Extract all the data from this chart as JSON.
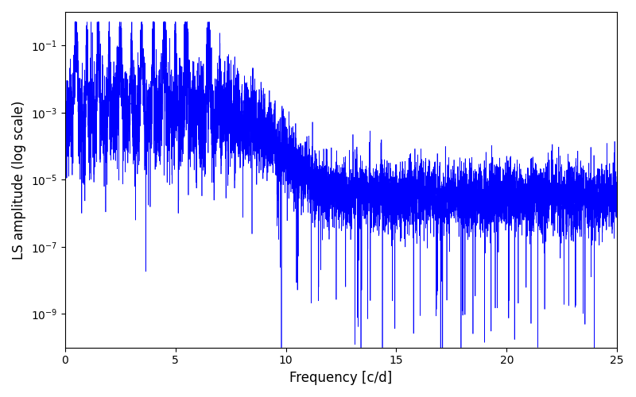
{
  "title": "",
  "xlabel": "Frequency [c/d]",
  "ylabel": "LS amplitude (log scale)",
  "line_color": "#0000ff",
  "xlim": [
    0,
    25
  ],
  "ylim": [
    1e-10,
    1
  ],
  "figsize": [
    8.0,
    5.0
  ],
  "dpi": 100,
  "seed": 12345,
  "n_points": 8000,
  "freq_max": 25.0,
  "background_color": "#ffffff"
}
